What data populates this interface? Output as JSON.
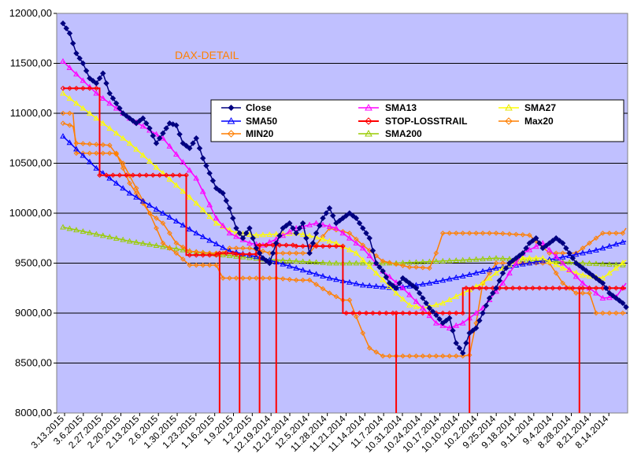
{
  "chart_data": {
    "type": "line",
    "title": "DAX-DETAIL",
    "xlabel": "",
    "ylabel": "",
    "ylim": [
      8000,
      12000
    ],
    "y_ticks": [
      "8000,00",
      "8500,00",
      "9000,00",
      "9500,00",
      "10000,00",
      "10500,00",
      "11000,00",
      "11500,00",
      "12000,00"
    ],
    "y_tick_values": [
      8000,
      8500,
      9000,
      9500,
      10000,
      10500,
      11000,
      11500,
      12000
    ],
    "x_tick_labels": [
      "3.13.2015",
      "3.6.2015",
      "2.27.2015",
      "2.20.2015",
      "2.13.2015",
      "2.6.2015",
      "1.30.2015",
      "1.23.2015",
      "1.16.2015",
      "1.9.2015",
      "1.2.2015",
      "12.19.2014",
      "12.12.2014",
      "12.5.2014",
      "11.28.2014",
      "11.21.2014",
      "11.14.2014",
      "11.7.2014",
      "10.31.2014",
      "10.24.2014",
      "10.17.2014",
      "10.10.2014",
      "10.2.2014",
      "9.25.2014",
      "9.18.2014",
      "9.11.2014",
      "9.4.2014",
      "8.28.2014",
      "8.21.2014",
      "8.14.2014"
    ],
    "n_points": 150,
    "legend": [
      "Close",
      "SMA13",
      "SMA27",
      "SMA50",
      "STOP-LOSSTRAIL",
      "Max20",
      "MIN20",
      "SMA200"
    ],
    "colors": {
      "plot_bg": "#c0c0ff",
      "close": "#000080",
      "sma13": "#ff00ff",
      "sma27": "#ffff00",
      "sma50": "#0000ff",
      "stop": "#ff0000",
      "max20": "#ff7f00",
      "min20": "#ff7f00",
      "sma200": "#99cc00"
    },
    "series": [
      {
        "name": "Close",
        "key": "close",
        "marker": "diamond",
        "anchors": [
          [
            0,
            11900
          ],
          [
            2,
            11800
          ],
          [
            4,
            11600
          ],
          [
            6,
            11500
          ],
          [
            8,
            11350
          ],
          [
            10,
            11300
          ],
          [
            12,
            11400
          ],
          [
            14,
            11200
          ],
          [
            16,
            11100
          ],
          [
            18,
            11000
          ],
          [
            20,
            10950
          ],
          [
            22,
            10900
          ],
          [
            24,
            10950
          ],
          [
            26,
            10850
          ],
          [
            28,
            10700
          ],
          [
            30,
            10800
          ],
          [
            32,
            10900
          ],
          [
            34,
            10880
          ],
          [
            36,
            10700
          ],
          [
            38,
            10650
          ],
          [
            40,
            10750
          ],
          [
            42,
            10550
          ],
          [
            44,
            10400
          ],
          [
            46,
            10250
          ],
          [
            48,
            10200
          ],
          [
            50,
            10050
          ],
          [
            52,
            9850
          ],
          [
            54,
            9750
          ],
          [
            56,
            9850
          ],
          [
            58,
            9650
          ],
          [
            60,
            9550
          ],
          [
            62,
            9500
          ],
          [
            64,
            9700
          ],
          [
            66,
            9850
          ],
          [
            68,
            9900
          ],
          [
            70,
            9800
          ],
          [
            72,
            9900
          ],
          [
            74,
            9600
          ],
          [
            76,
            9800
          ],
          [
            78,
            9950
          ],
          [
            80,
            10050
          ],
          [
            82,
            9900
          ],
          [
            84,
            9950
          ],
          [
            86,
            10000
          ],
          [
            88,
            9950
          ],
          [
            90,
            9850
          ],
          [
            92,
            9750
          ],
          [
            94,
            9500
          ],
          [
            96,
            9420
          ],
          [
            98,
            9300
          ],
          [
            100,
            9250
          ],
          [
            102,
            9350
          ],
          [
            104,
            9300
          ],
          [
            106,
            9250
          ],
          [
            108,
            9150
          ],
          [
            110,
            9050
          ],
          [
            112,
            8980
          ],
          [
            114,
            8900
          ],
          [
            116,
            8950
          ],
          [
            118,
            8700
          ],
          [
            120,
            8600
          ],
          [
            122,
            8800
          ],
          [
            124,
            8850
          ],
          [
            126,
            9000
          ],
          [
            128,
            9150
          ],
          [
            130,
            9250
          ],
          [
            132,
            9400
          ],
          [
            134,
            9500
          ],
          [
            136,
            9550
          ],
          [
            138,
            9600
          ],
          [
            140,
            9700
          ],
          [
            142,
            9750
          ],
          [
            144,
            9650
          ],
          [
            146,
            9700
          ],
          [
            148,
            9750
          ],
          [
            150,
            9700
          ],
          [
            152,
            9600
          ],
          [
            154,
            9500
          ],
          [
            156,
            9450
          ],
          [
            158,
            9400
          ],
          [
            160,
            9350
          ],
          [
            162,
            9300
          ],
          [
            164,
            9200
          ],
          [
            166,
            9150
          ],
          [
            168,
            9100
          ],
          [
            169,
            9060
          ]
        ]
      },
      {
        "name": "SMA13",
        "key": "sma13",
        "marker": "triangle",
        "anchors": [
          [
            0,
            11520
          ],
          [
            10,
            11200
          ],
          [
            20,
            10950
          ],
          [
            30,
            10750
          ],
          [
            40,
            10350
          ],
          [
            46,
            9950
          ],
          [
            50,
            9800
          ],
          [
            56,
            9700
          ],
          [
            60,
            9680
          ],
          [
            64,
            9740
          ],
          [
            70,
            9850
          ],
          [
            76,
            9900
          ],
          [
            82,
            9850
          ],
          [
            90,
            9650
          ],
          [
            96,
            9420
          ],
          [
            102,
            9250
          ],
          [
            108,
            9050
          ],
          [
            112,
            8900
          ],
          [
            116,
            8850
          ],
          [
            120,
            8900
          ],
          [
            126,
            9050
          ],
          [
            132,
            9300
          ],
          [
            138,
            9600
          ],
          [
            144,
            9700
          ],
          [
            150,
            9500
          ],
          [
            156,
            9300
          ],
          [
            162,
            9150
          ],
          [
            166,
            9160
          ],
          [
            169,
            9300
          ]
        ]
      },
      {
        "name": "SMA27",
        "key": "sma27",
        "marker": "triangle",
        "anchors": [
          [
            0,
            11200
          ],
          [
            10,
            10950
          ],
          [
            20,
            10700
          ],
          [
            30,
            10400
          ],
          [
            40,
            10100
          ],
          [
            46,
            9900
          ],
          [
            52,
            9800
          ],
          [
            58,
            9780
          ],
          [
            64,
            9790
          ],
          [
            70,
            9800
          ],
          [
            76,
            9760
          ],
          [
            82,
            9700
          ],
          [
            88,
            9600
          ],
          [
            94,
            9400
          ],
          [
            100,
            9200
          ],
          [
            104,
            9080
          ],
          [
            108,
            9050
          ],
          [
            114,
            9100
          ],
          [
            120,
            9200
          ],
          [
            126,
            9300
          ],
          [
            132,
            9450
          ],
          [
            138,
            9550
          ],
          [
            144,
            9550
          ],
          [
            150,
            9450
          ],
          [
            156,
            9380
          ],
          [
            162,
            9350
          ],
          [
            166,
            9450
          ],
          [
            169,
            9530
          ]
        ]
      },
      {
        "name": "SMA50",
        "key": "sma50",
        "marker": "triangle",
        "anchors": [
          [
            0,
            10770
          ],
          [
            10,
            10450
          ],
          [
            20,
            10200
          ],
          [
            30,
            10000
          ],
          [
            40,
            9800
          ],
          [
            50,
            9620
          ],
          [
            60,
            9550
          ],
          [
            70,
            9450
          ],
          [
            80,
            9350
          ],
          [
            90,
            9280
          ],
          [
            100,
            9250
          ],
          [
            110,
            9300
          ],
          [
            120,
            9370
          ],
          [
            130,
            9450
          ],
          [
            140,
            9500
          ],
          [
            150,
            9560
          ],
          [
            160,
            9630
          ],
          [
            169,
            9720
          ]
        ]
      },
      {
        "name": "STOP-LOSSTRAIL",
        "key": "stop",
        "marker": "diamond",
        "anchors": [
          [
            0,
            11250
          ],
          [
            11,
            11250
          ],
          [
            11,
            10380
          ],
          [
            37,
            10380
          ],
          [
            37,
            9580
          ],
          [
            46,
            9580
          ],
          [
            46,
            9600
          ],
          [
            52,
            9600
          ],
          [
            52,
            9590
          ],
          [
            58,
            9590
          ],
          [
            58,
            9680
          ],
          [
            70,
            9680
          ],
          [
            70,
            9670
          ],
          [
            84,
            9670
          ],
          [
            84,
            9000
          ],
          [
            100,
            9000
          ],
          [
            100,
            9000
          ],
          [
            120,
            9000
          ],
          [
            120,
            9250
          ],
          [
            155,
            9250
          ],
          [
            155,
            9250
          ],
          [
            169,
            9250
          ]
        ],
        "drops": [
          [
            47,
            8000
          ],
          [
            53,
            8000
          ],
          [
            59,
            8000
          ],
          [
            64,
            8000
          ],
          [
            100,
            8000
          ],
          [
            122,
            8000
          ],
          [
            155,
            8000
          ]
        ]
      },
      {
        "name": "Max20",
        "key": "max20",
        "marker": "diamond",
        "anchors": [
          [
            0,
            10900
          ],
          [
            3,
            10870
          ],
          [
            4,
            10700
          ],
          [
            14,
            10680
          ],
          [
            18,
            10500
          ],
          [
            22,
            10250
          ],
          [
            26,
            10000
          ],
          [
            30,
            9900
          ],
          [
            32,
            9800
          ],
          [
            34,
            9700
          ],
          [
            38,
            9620
          ],
          [
            44,
            9600
          ],
          [
            48,
            9600
          ],
          [
            50,
            9650
          ],
          [
            56,
            9650
          ],
          [
            60,
            9620
          ],
          [
            62,
            9600
          ],
          [
            68,
            9600
          ],
          [
            74,
            9600
          ],
          [
            80,
            9850
          ],
          [
            86,
            9800
          ],
          [
            90,
            9680
          ],
          [
            96,
            9520
          ],
          [
            104,
            9460
          ],
          [
            106,
            9460
          ],
          [
            110,
            9450
          ],
          [
            112,
            9600
          ],
          [
            114,
            9800
          ],
          [
            130,
            9800
          ],
          [
            140,
            9780
          ],
          [
            146,
            9600
          ],
          [
            152,
            9600
          ],
          [
            154,
            9600
          ],
          [
            156,
            9650
          ],
          [
            162,
            9800
          ],
          [
            168,
            9800
          ],
          [
            169,
            9850
          ]
        ]
      },
      {
        "name": "MIN20",
        "key": "min20",
        "marker": "diamond",
        "anchors": [
          [
            0,
            11000
          ],
          [
            3,
            11000
          ],
          [
            4,
            10600
          ],
          [
            16,
            10600
          ],
          [
            20,
            10300
          ],
          [
            26,
            10000
          ],
          [
            30,
            9700
          ],
          [
            32,
            9650
          ],
          [
            34,
            9600
          ],
          [
            38,
            9480
          ],
          [
            46,
            9480
          ],
          [
            48,
            9350
          ],
          [
            56,
            9350
          ],
          [
            60,
            9350
          ],
          [
            64,
            9350
          ],
          [
            70,
            9330
          ],
          [
            74,
            9330
          ],
          [
            80,
            9200
          ],
          [
            84,
            9130
          ],
          [
            86,
            9130
          ],
          [
            90,
            8800
          ],
          [
            92,
            8650
          ],
          [
            96,
            8570
          ],
          [
            120,
            8570
          ],
          [
            122,
            8580
          ],
          [
            124,
            8900
          ],
          [
            126,
            9300
          ],
          [
            130,
            9500
          ],
          [
            140,
            9500
          ],
          [
            146,
            9500
          ],
          [
            150,
            9300
          ],
          [
            154,
            9200
          ],
          [
            158,
            9200
          ],
          [
            160,
            9000
          ],
          [
            169,
            9000
          ]
        ]
      },
      {
        "name": "SMA200",
        "key": "sma200",
        "marker": "triangle",
        "anchors": [
          [
            0,
            9860
          ],
          [
            20,
            9720
          ],
          [
            40,
            9610
          ],
          [
            60,
            9540
          ],
          [
            80,
            9500
          ],
          [
            100,
            9500
          ],
          [
            120,
            9530
          ],
          [
            130,
            9550
          ],
          [
            140,
            9530
          ],
          [
            150,
            9510
          ],
          [
            169,
            9480
          ]
        ]
      }
    ]
  }
}
